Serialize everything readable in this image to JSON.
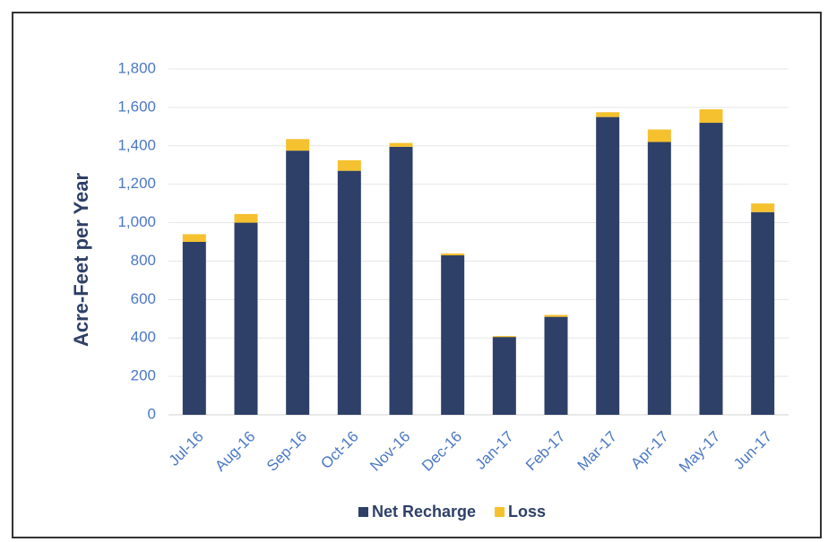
{
  "chart_data": {
    "type": "stacked_bar",
    "y_label": "Acre-Feet per Year",
    "categories": [
      "Jul-16",
      "Aug-16",
      "Sep-16",
      "Oct-16",
      "Nov-16",
      "Dec-16",
      "Jan-17",
      "Feb-17",
      "Mar-17",
      "Apr-17",
      "May-17",
      "Jun-17"
    ],
    "series": [
      {
        "name": "Net Recharge",
        "color": "#2e4068",
        "values": [
          900,
          1000,
          1375,
          1270,
          1395,
          830,
          405,
          510,
          1550,
          1420,
          1520,
          1055
        ]
      },
      {
        "name": "Loss",
        "color": "#f5c12e",
        "values": [
          40,
          45,
          60,
          55,
          20,
          10,
          5,
          10,
          25,
          65,
          70,
          45
        ]
      }
    ],
    "ylim": [
      0,
      1800
    ],
    "yticks": [
      0,
      200,
      400,
      600,
      800,
      {
        "value": 1000,
        "label": "1,000"
      },
      {
        "value": 1200,
        "label": "1,200"
      },
      {
        "value": 1400,
        "label": "1,400"
      },
      {
        "value": 1600,
        "label": "1,600"
      },
      {
        "value": 1800,
        "label": "1,800"
      }
    ],
    "grid": true,
    "legend": "bottom"
  }
}
